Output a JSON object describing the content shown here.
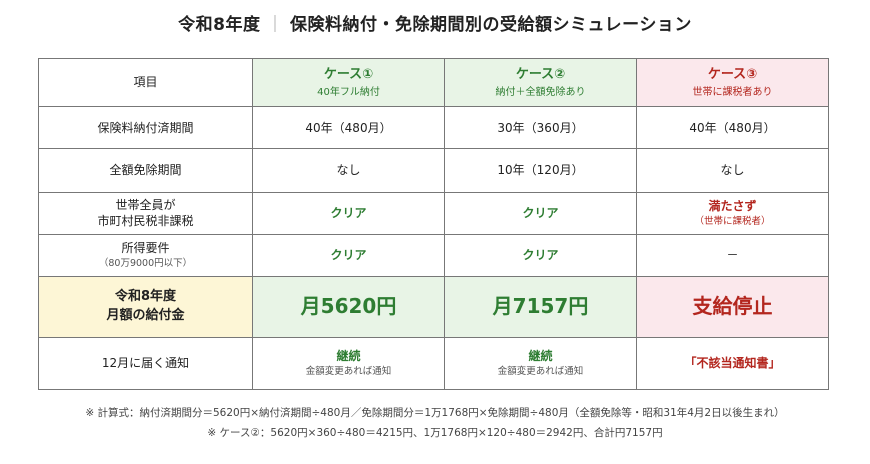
{
  "title": {
    "main": "令和8年度",
    "separator": "｜",
    "sub": "保険料納付・免除期間別の受給額シミュレーション"
  },
  "table": {
    "header": {
      "item": "項目",
      "cases": [
        {
          "name": "ケース①",
          "desc": "40年フル納付"
        },
        {
          "name": "ケース②",
          "desc": "納付＋全額免除あり"
        },
        {
          "name": "ケース③",
          "desc": "世帯に課税者あり"
        }
      ]
    },
    "rows": {
      "paid_period": {
        "label": "保険料納付済期間",
        "values": [
          "40年（480月）",
          "30年（360月）",
          "40年（480月）"
        ]
      },
      "exempt_period": {
        "label": "全額免除期間",
        "values": [
          "なし",
          "10年（120月）",
          "なし"
        ]
      },
      "household": {
        "label_line1": "世帯全員が",
        "label_line2": "市町村民税非課税",
        "values": [
          "クリア",
          "クリア",
          "満たさず"
        ],
        "case3_note": "（世帯に課税者）"
      },
      "income": {
        "label": "所得要件",
        "label_note": "（80万9000円以下）",
        "values": [
          "クリア",
          "クリア",
          "－"
        ]
      },
      "monthly": {
        "label_line1": "令和8年度",
        "label_line2": "月額の給付金",
        "values": [
          "月5620円",
          "月7157円",
          "支給停止"
        ]
      },
      "notice": {
        "label": "12月に届く通知",
        "values": [
          "継続",
          "継続",
          "「不該当通知書」"
        ],
        "subs": [
          "金額変更あれば通知",
          "金額変更あれば通知"
        ]
      }
    }
  },
  "notes": {
    "line1": "※ 計算式：納付済期間分＝5620円×納付済期間÷480月／免除期間分＝1万1768円×免除期間÷480月（全額免除等・昭和31年4月2日以後生まれ）",
    "line2": "※ ケース②：5620円×360÷480＝4215円、1万1768円×120÷480＝2942円、合計円7157円"
  },
  "colors": {
    "green_bg": "#e8f4e6",
    "pink_bg": "#fbe8ec",
    "yellow_bg": "#fdf6d6",
    "green_text": "#2e7d32",
    "red_text": "#b3261e"
  }
}
